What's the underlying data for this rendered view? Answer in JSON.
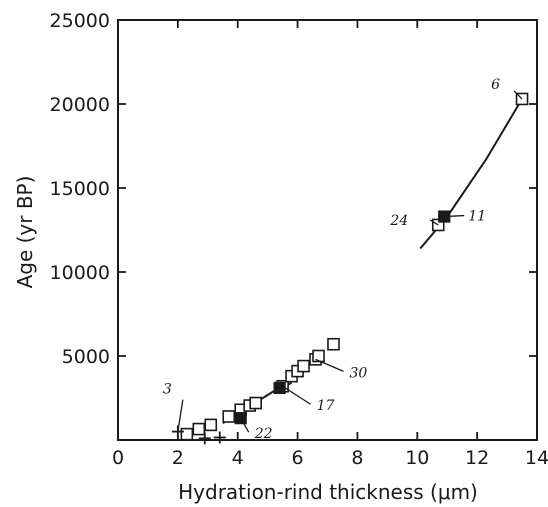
{
  "chart_data": {
    "type": "scatter",
    "xlabel": "Hydration-rind thickness (μm)",
    "ylabel": "Age (yr BP)",
    "xlim": [
      0,
      14
    ],
    "ylim": [
      0,
      25000
    ],
    "x_ticks": [
      0,
      2,
      4,
      6,
      8,
      10,
      12,
      14
    ],
    "y_ticks": [
      5000,
      10000,
      15000,
      20000,
      25000
    ],
    "x_tick_labels": [
      "0",
      "2",
      "4",
      "6",
      "8",
      "10",
      "12",
      "14"
    ],
    "y_tick_labels": [
      "5000",
      "10000",
      "15000",
      "20000",
      "25000"
    ],
    "grid": false,
    "legend": "none",
    "series": [
      {
        "marker": "open-square",
        "points": [
          {
            "x": 2.3,
            "y": 350
          },
          {
            "x": 2.7,
            "y": 650
          },
          {
            "x": 3.1,
            "y": 900
          },
          {
            "x": 3.7,
            "y": 1400
          },
          {
            "x": 4.1,
            "y": 1800
          },
          {
            "x": 4.4,
            "y": 2050
          },
          {
            "x": 4.6,
            "y": 2200
          },
          {
            "x": 5.5,
            "y": 3200
          },
          {
            "x": 5.8,
            "y": 3800
          },
          {
            "x": 6.0,
            "y": 4100
          },
          {
            "x": 6.2,
            "y": 4400
          },
          {
            "x": 6.6,
            "y": 4800
          },
          {
            "x": 6.7,
            "y": 5000
          },
          {
            "x": 7.2,
            "y": 5700
          },
          {
            "x": 10.7,
            "y": 12800
          },
          {
            "x": 13.5,
            "y": 20300
          }
        ]
      },
      {
        "marker": "filled-square",
        "points": [
          {
            "x": 4.1,
            "y": 1300
          },
          {
            "x": 5.4,
            "y": 3100
          },
          {
            "x": 10.9,
            "y": 13300
          }
        ]
      },
      {
        "marker": "plus",
        "points": [
          {
            "x": 2.0,
            "y": 500
          },
          {
            "x": 2.9,
            "y": 100
          },
          {
            "x": 3.4,
            "y": 150
          }
        ]
      }
    ],
    "fit_lines": [
      {
        "points": [
          {
            "x": 3.5,
            "y": 1000
          },
          {
            "x": 5.2,
            "y": 2900
          },
          {
            "x": 5.8,
            "y": 3400
          }
        ]
      },
      {
        "points": [
          {
            "x": 10.1,
            "y": 11400
          },
          {
            "x": 11.0,
            "y": 13300
          },
          {
            "x": 12.3,
            "y": 16700
          },
          {
            "x": 13.5,
            "y": 20300
          }
        ]
      }
    ],
    "annotations": [
      {
        "text": "3",
        "x": 2.0,
        "y": 500
      },
      {
        "text": "22",
        "x": 4.1,
        "y": 1300
      },
      {
        "text": "17",
        "x": 5.5,
        "y": 3200
      },
      {
        "text": "30",
        "x": 6.6,
        "y": 4800
      },
      {
        "text": "24",
        "x": 10.7,
        "y": 12800
      },
      {
        "text": "11",
        "x": 10.9,
        "y": 13300
      },
      {
        "text": "6",
        "x": 13.5,
        "y": 20300
      }
    ]
  }
}
